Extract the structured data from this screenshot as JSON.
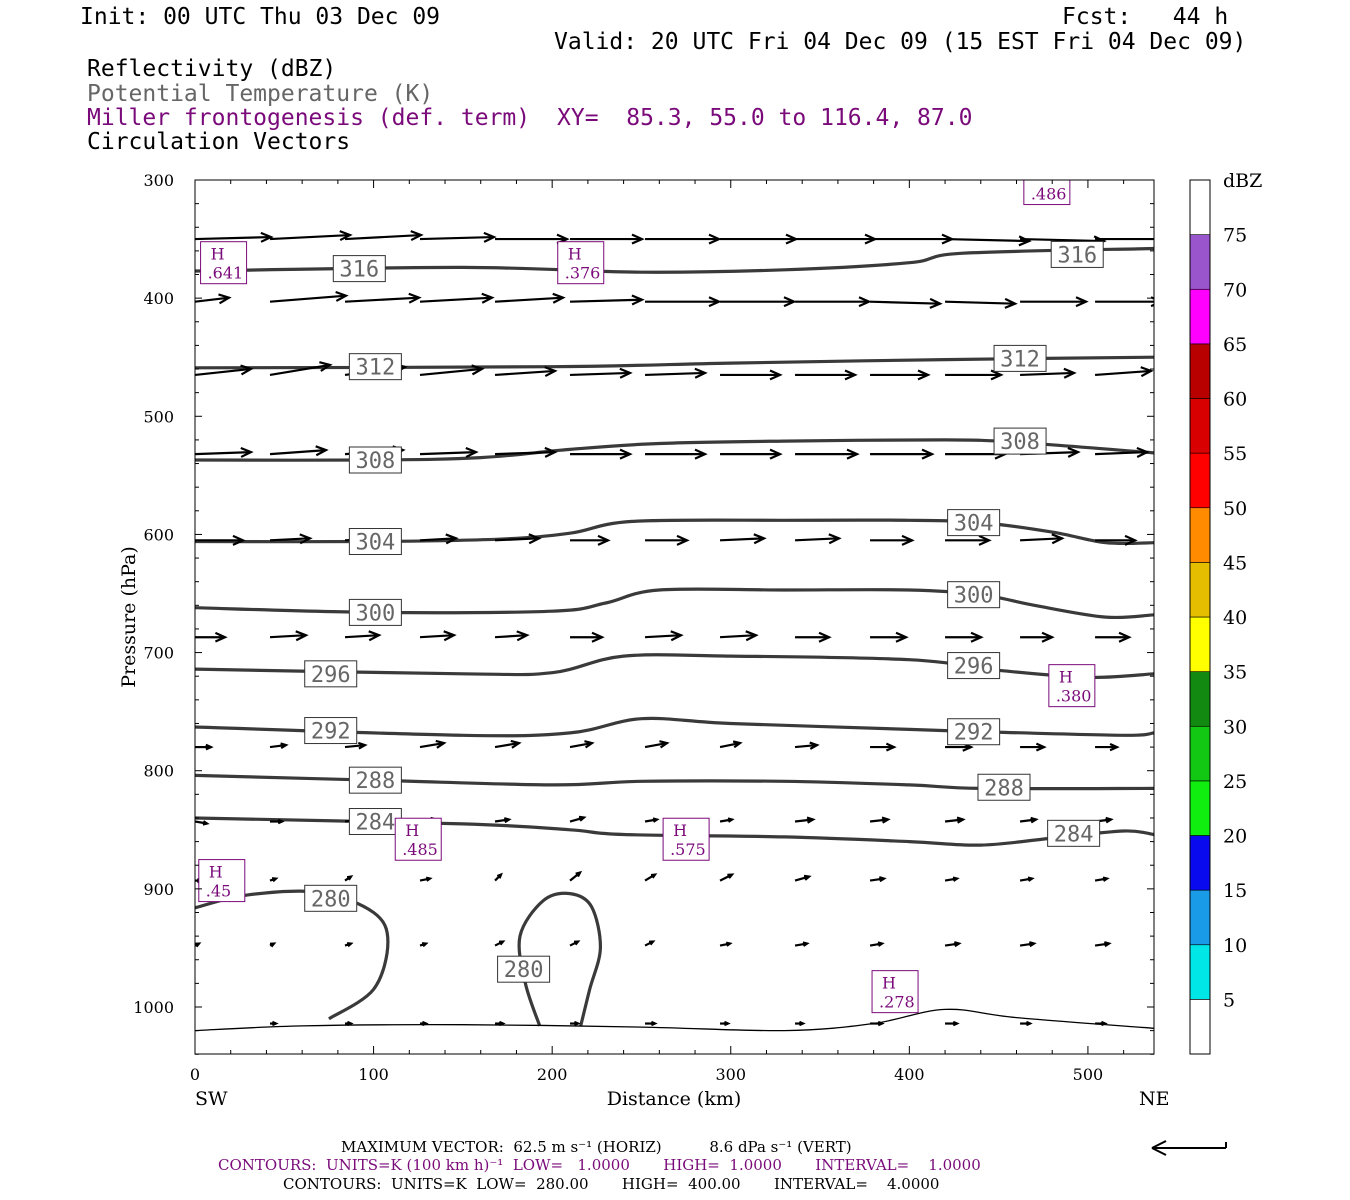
{
  "header": {
    "init": "Init: 00 UTC Thu 03 Dec 09",
    "fcst": "Fcst:   44 h",
    "valid": "Valid: 20 UTC Fri 04 Dec 09 (15 EST Fri 04 Dec 09)",
    "field1": "Reflectivity (dBZ)",
    "field2": "Potential Temperature (K)",
    "field3": "Miller frontogenesis (def. term)",
    "xy": "XY=  85.3, 55.0 to 116.4, 87.0",
    "field4": "Circulation Vectors"
  },
  "colors": {
    "frontogenesis": "#7a0a7a",
    "theta_label": "#666666",
    "theta_line": "#3a3a3a"
  },
  "footer": {
    "max_vector": "MAXIMUM VECTOR:  62.5 m s⁻¹ (HORIZ)          8.6 dPa s⁻¹ (VERT)",
    "contours1": "CONTOURS:  UNITS=K (100 km h)⁻¹  LOW=   1.0000       HIGH=  1.0000       INTERVAL=    1.0000",
    "contours2": "CONTOURS:  UNITS=K  LOW=  280.00       HIGH=  400.00       INTERVAL=    4.0000"
  },
  "colorbar": {
    "unit": "dBZ",
    "levels": [
      "5",
      "10",
      "15",
      "20",
      "25",
      "30",
      "35",
      "40",
      "45",
      "50",
      "55",
      "60",
      "65",
      "70",
      "75"
    ],
    "colors": [
      "#ffffff",
      "#00e5e5",
      "#1a9be8",
      "#0a0aee",
      "#10ee10",
      "#12c812",
      "#128a12",
      "#ffff00",
      "#e6be00",
      "#ff8c00",
      "#ff0000",
      "#d80000",
      "#b80000",
      "#ff00ff",
      "#9955cc",
      "#ffffff"
    ]
  },
  "chart_data": {
    "type": "cross-section",
    "xlabel": "Distance (km)",
    "ylabel": "Pressure (hPa)",
    "x_left_label": "SW",
    "x_right_label": "NE",
    "xlim": [
      0,
      537
    ],
    "ylim": [
      1040,
      300
    ],
    "x_ticks": [
      0,
      100,
      200,
      300,
      400,
      500
    ],
    "y_ticks": [
      300,
      400,
      500,
      600,
      700,
      800,
      900,
      1000
    ],
    "theta_contours": [
      {
        "label": "316",
        "points": [
          [
            0,
            377
          ],
          [
            150,
            374
          ],
          [
            250,
            378
          ],
          [
            330,
            376
          ],
          [
            400,
            370
          ],
          [
            430,
            362
          ],
          [
            537,
            358
          ]
        ],
        "labels_at": [
          [
            92,
            375
          ],
          [
            494,
            363
          ]
        ]
      },
      {
        "label": "312",
        "points": [
          [
            0,
            459
          ],
          [
            200,
            458
          ],
          [
            300,
            455
          ],
          [
            420,
            452
          ],
          [
            537,
            450
          ]
        ],
        "labels_at": [
          [
            101,
            458
          ],
          [
            462,
            451
          ]
        ]
      },
      {
        "label": "308",
        "points": [
          [
            0,
            537
          ],
          [
            100,
            537
          ],
          [
            160,
            535
          ],
          [
            210,
            528
          ],
          [
            260,
            523
          ],
          [
            330,
            521
          ],
          [
            420,
            520
          ],
          [
            460,
            522
          ],
          [
            537,
            531
          ]
        ],
        "labels_at": [
          [
            101,
            537
          ],
          [
            462,
            521
          ]
        ]
      },
      {
        "label": "304",
        "points": [
          [
            0,
            606
          ],
          [
            100,
            606
          ],
          [
            170,
            604
          ],
          [
            210,
            599
          ],
          [
            245,
            589
          ],
          [
            330,
            588
          ],
          [
            400,
            588
          ],
          [
            440,
            590
          ],
          [
            480,
            598
          ],
          [
            510,
            607
          ],
          [
            537,
            607
          ]
        ],
        "labels_at": [
          [
            101,
            606
          ],
          [
            436,
            590
          ]
        ]
      },
      {
        "label": "300",
        "points": [
          [
            0,
            662
          ],
          [
            100,
            666
          ],
          [
            200,
            665
          ],
          [
            230,
            658
          ],
          [
            260,
            647
          ],
          [
            330,
            647
          ],
          [
            400,
            647
          ],
          [
            440,
            651
          ],
          [
            470,
            660
          ],
          [
            510,
            670
          ],
          [
            537,
            668
          ]
        ],
        "labels_at": [
          [
            101,
            666
          ],
          [
            436,
            651
          ]
        ]
      },
      {
        "label": "296",
        "points": [
          [
            0,
            714
          ],
          [
            150,
            718
          ],
          [
            200,
            717
          ],
          [
            240,
            703
          ],
          [
            300,
            703
          ],
          [
            400,
            706
          ],
          [
            450,
            715
          ],
          [
            500,
            721
          ],
          [
            537,
            718
          ]
        ],
        "labels_at": [
          [
            76,
            718
          ],
          [
            436,
            711
          ]
        ]
      },
      {
        "label": "292",
        "points": [
          [
            0,
            763
          ],
          [
            150,
            770
          ],
          [
            210,
            768
          ],
          [
            250,
            756
          ],
          [
            300,
            760
          ],
          [
            400,
            765
          ],
          [
            440,
            767
          ],
          [
            520,
            770
          ],
          [
            537,
            768
          ]
        ],
        "labels_at": [
          [
            76,
            766
          ],
          [
            436,
            767
          ]
        ]
      },
      {
        "label": "288",
        "points": [
          [
            0,
            804
          ],
          [
            100,
            808
          ],
          [
            200,
            812
          ],
          [
            250,
            809
          ],
          [
            330,
            809
          ],
          [
            400,
            812
          ],
          [
            440,
            815
          ],
          [
            537,
            815
          ]
        ],
        "labels_at": [
          [
            101,
            808
          ],
          [
            453,
            814
          ]
        ]
      },
      {
        "label": "284",
        "points": [
          [
            0,
            840
          ],
          [
            150,
            845
          ],
          [
            210,
            850
          ],
          [
            240,
            854
          ],
          [
            330,
            856
          ],
          [
            400,
            860
          ],
          [
            440,
            863
          ],
          [
            480,
            857
          ],
          [
            520,
            851
          ],
          [
            537,
            854
          ]
        ],
        "labels_at": [
          [
            101,
            843
          ],
          [
            492,
            853
          ]
        ]
      },
      {
        "label": "280",
        "points": [
          [
            0,
            916
          ],
          [
            30,
            905
          ],
          [
            70,
            903
          ],
          [
            100,
            920
          ],
          [
            108,
            945
          ],
          [
            100,
            985
          ],
          [
            75,
            1010
          ]
        ],
        "labels_at": [
          [
            76,
            908
          ]
        ]
      },
      {
        "label": "280",
        "points": [
          [
            193,
            1016
          ],
          [
            185,
            980
          ],
          [
            182,
            940
          ],
          [
            195,
            910
          ],
          [
            210,
            904
          ],
          [
            222,
            915
          ],
          [
            227,
            950
          ],
          [
            221,
            985
          ],
          [
            216,
            1016
          ]
        ],
        "labels_at": [
          [
            184,
            968
          ]
        ]
      }
    ],
    "ground_points": [
      [
        0,
        1020
      ],
      [
        60,
        1016
      ],
      [
        150,
        1015
      ],
      [
        250,
        1017
      ],
      [
        330,
        1020
      ],
      [
        380,
        1014
      ],
      [
        420,
        1002
      ],
      [
        460,
        1009
      ],
      [
        537,
        1018
      ]
    ],
    "frontogenesis_maxima": [
      {
        "label": "H",
        "value": ".641",
        "x": 16,
        "p": 370
      },
      {
        "label": "H",
        "value": ".376",
        "x": 216,
        "p": 370
      },
      {
        "label": "H",
        "value": ".486",
        "x": 477,
        "p": 303
      },
      {
        "label": "H",
        "value": ".380",
        "x": 491,
        "p": 728
      },
      {
        "label": "H",
        "value": ".485",
        "x": 125,
        "p": 858
      },
      {
        "label": "H",
        "value": ".575",
        "x": 275,
        "p": 858
      },
      {
        "label": "H",
        "value": ".45",
        "x": 15,
        "p": 893
      },
      {
        "label": "H",
        "value": ".278",
        "x": 392,
        "p": 987
      }
    ],
    "vector_rows": [
      {
        "p": 350,
        "x": [
          0,
          42,
          84,
          126,
          168,
          210,
          252,
          294,
          336,
          378,
          420,
          462,
          504
        ],
        "u": [
          38,
          40,
          38,
          37,
          36,
          36,
          37,
          38,
          40,
          41,
          42,
          42,
          40
        ],
        "w": [
          -1,
          -2,
          -2,
          -1,
          0,
          0,
          0,
          0,
          0,
          0,
          1,
          1,
          0
        ]
      },
      {
        "p": 403,
        "x": [
          0,
          42,
          84,
          126,
          168,
          210,
          252,
          294,
          336,
          378,
          420,
          462,
          504
        ],
        "u": [
          17,
          38,
          37,
          36,
          34,
          36,
          37,
          37,
          37,
          35,
          35,
          33,
          33
        ],
        "w": [
          -2,
          -3,
          -2,
          -2,
          -2,
          -1,
          0,
          0,
          0,
          1,
          1,
          0,
          0
        ]
      },
      {
        "p": 465,
        "x": [
          0,
          42,
          84,
          126,
          168,
          210,
          252,
          294,
          336,
          378,
          420,
          462,
          504
        ],
        "u": [
          28,
          30,
          30,
          31,
          30,
          30,
          30,
          30,
          30,
          29,
          28,
          27,
          28
        ],
        "w": [
          -3,
          -5,
          -4,
          -3,
          -2,
          -1,
          -1,
          0,
          0,
          0,
          0,
          -1,
          -2
        ]
      },
      {
        "p": 532,
        "x": [
          0,
          42,
          84,
          126,
          168,
          210,
          252,
          294,
          336,
          378,
          420,
          462,
          504
        ],
        "u": [
          28,
          28,
          29,
          28,
          30,
          30,
          30,
          30,
          31,
          31,
          30,
          29,
          26
        ],
        "w": [
          -1,
          -2,
          -2,
          -1,
          -1,
          0,
          0,
          0,
          0,
          0,
          0,
          -1,
          -1
        ]
      },
      {
        "p": 605,
        "x": [
          0,
          42,
          84,
          126,
          168,
          210,
          252,
          294,
          336,
          378,
          420,
          462,
          504
        ],
        "u": [
          24,
          20,
          18,
          18,
          22,
          19,
          21,
          22,
          22,
          21,
          22,
          21,
          20
        ],
        "w": [
          0,
          -1,
          -1,
          -1,
          -1,
          0,
          0,
          -1,
          -1,
          0,
          0,
          -1,
          0
        ]
      },
      {
        "p": 687,
        "x": [
          0,
          42,
          84,
          126,
          168,
          210,
          252,
          294,
          336,
          378,
          420,
          462,
          504
        ],
        "u": [
          15,
          18,
          17,
          17,
          16,
          16,
          18,
          18,
          17,
          18,
          18,
          16,
          17
        ],
        "w": [
          0,
          -1,
          -1,
          -1,
          -1,
          0,
          -1,
          -1,
          0,
          0,
          0,
          0,
          0
        ]
      },
      {
        "p": 780,
        "x": [
          0,
          42,
          84,
          126,
          168,
          210,
          252,
          294,
          336,
          378,
          420,
          462,
          504
        ],
        "u": [
          8,
          8,
          10,
          12,
          12,
          11,
          11,
          10,
          11,
          12,
          13,
          12,
          11
        ],
        "w": [
          0,
          -1,
          -1,
          -2,
          -2,
          -2,
          -2,
          -2,
          -1,
          0,
          0,
          0,
          0
        ]
      },
      {
        "p": 843,
        "x": [
          0,
          42,
          84,
          126,
          168,
          210,
          252,
          294,
          336,
          378,
          420,
          462,
          504
        ],
        "u": [
          6,
          6,
          7,
          8,
          7,
          7,
          6,
          6,
          9,
          9,
          9,
          8,
          8
        ],
        "w": [
          1,
          0,
          -1,
          -1,
          -1,
          -2,
          -1,
          -1,
          -1,
          -1,
          -1,
          -1,
          -1
        ]
      },
      {
        "p": 893,
        "x": [
          0,
          42,
          84,
          126,
          168,
          210,
          252,
          294,
          336,
          378,
          420,
          462,
          504
        ],
        "u": [
          3,
          3,
          3,
          5,
          3,
          5,
          5,
          6,
          7,
          7,
          6,
          6,
          6
        ],
        "w": [
          0,
          -1,
          -2,
          -1,
          -3,
          -4,
          -3,
          -3,
          -2,
          -1,
          -1,
          -1,
          -1
        ]
      },
      {
        "p": 948,
        "x": [
          0,
          42,
          84,
          126,
          168,
          210,
          252,
          294,
          336,
          378,
          420,
          462,
          504
        ],
        "u": [
          2,
          2,
          3,
          3,
          4,
          4,
          4,
          5,
          6,
          6,
          7,
          7,
          7
        ],
        "w": [
          -1,
          -1,
          -1,
          -1,
          -2,
          -2,
          -2,
          -1,
          -1,
          -1,
          -1,
          -1,
          -1
        ]
      },
      {
        "p": 1014,
        "x": [
          42,
          84,
          126,
          168,
          210,
          252,
          294,
          336,
          378,
          420,
          462,
          504
        ],
        "u": [
          3,
          3,
          3,
          4,
          4,
          5,
          4,
          4,
          6,
          6,
          5,
          5
        ],
        "w": [
          0,
          0,
          0,
          0,
          0,
          0,
          0,
          0,
          0,
          0,
          0,
          0
        ]
      }
    ]
  }
}
